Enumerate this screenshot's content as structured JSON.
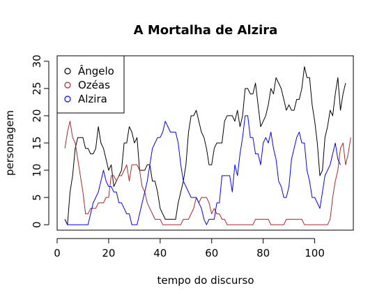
{
  "chart_data": {
    "type": "line",
    "title": "A Mortalha de Alzira",
    "xlabel": "tempo do discurso",
    "ylabel": "personagem",
    "xlim": [
      0,
      115
    ],
    "ylim": [
      -1,
      31
    ],
    "xticks": [
      0,
      20,
      40,
      60,
      80,
      100
    ],
    "yticks": [
      0,
      5,
      10,
      15,
      20,
      25,
      30
    ],
    "legend_position": "top-left",
    "x_start": 3,
    "series": [
      {
        "name": "Ângelo",
        "color": "#000000",
        "values": [
          1,
          0,
          6,
          9,
          14,
          16,
          16,
          16,
          14,
          14,
          13,
          13,
          14,
          18,
          15,
          14,
          12,
          10,
          11,
          7,
          8,
          9,
          10,
          15,
          15,
          18,
          17,
          15,
          16,
          10,
          10,
          10,
          11,
          11,
          8,
          8,
          6,
          3,
          2,
          1,
          1,
          1,
          1,
          1,
          4,
          6,
          8,
          11,
          17,
          20,
          20,
          21,
          19,
          17,
          16,
          14,
          11,
          11,
          14,
          15,
          15,
          15,
          19,
          20,
          20,
          20,
          19,
          21,
          18,
          20,
          25,
          25,
          24,
          24,
          26,
          22,
          18,
          19,
          20,
          22,
          25,
          24,
          27,
          26,
          25,
          23,
          21,
          22,
          21,
          21,
          23,
          23,
          25,
          29,
          27,
          27,
          22,
          19,
          15,
          9,
          10,
          16,
          18,
          21,
          20,
          24,
          27,
          21,
          24,
          26
        ]
      },
      {
        "name": "Ozéas",
        "color": "#a52a2a",
        "values": [
          14,
          17,
          19,
          16,
          15,
          12,
          9,
          6,
          2,
          2,
          3,
          3,
          3,
          4,
          4,
          4,
          5,
          5,
          9,
          9,
          8,
          9,
          9,
          10,
          11,
          8,
          11,
          11,
          11,
          10,
          7,
          6,
          4,
          3,
          2,
          1,
          1,
          1,
          0,
          0,
          0,
          0,
          0,
          0,
          0,
          0,
          1,
          1,
          1,
          2,
          3,
          5,
          4,
          5,
          5,
          5,
          4,
          2,
          3,
          2,
          2,
          1,
          1,
          0,
          0,
          0,
          0,
          0,
          0,
          0,
          0,
          0,
          0,
          0,
          1,
          1,
          1,
          1,
          1,
          1,
          0,
          0,
          0,
          0,
          0,
          0,
          1,
          1,
          1,
          1,
          1,
          1,
          1,
          0,
          0,
          0,
          0,
          0,
          0,
          0,
          0,
          0,
          0,
          1,
          5,
          8,
          10,
          14,
          15,
          11,
          13,
          16
        ]
      },
      {
        "name": "Alzira",
        "color": "#0000ff",
        "values": [
          1,
          0,
          0,
          0,
          0,
          0,
          0,
          0,
          0,
          0,
          2,
          4,
          5,
          6,
          8,
          10,
          8,
          7,
          7,
          6,
          6,
          4,
          4,
          3,
          2,
          2,
          0,
          0,
          0,
          2,
          4,
          6,
          8,
          11,
          14,
          15,
          16,
          16,
          17,
          19,
          18,
          17,
          17,
          17,
          15,
          11,
          8,
          7,
          6,
          5,
          5,
          5,
          4,
          3,
          1,
          0,
          1,
          1,
          1,
          4,
          4,
          9,
          9,
          9,
          9,
          6,
          11,
          9,
          13,
          16,
          20,
          20,
          16,
          16,
          13,
          13,
          11,
          15,
          16,
          15,
          17,
          14,
          12,
          8,
          7,
          5,
          5,
          7,
          12,
          14,
          16,
          17,
          15,
          15,
          10,
          8,
          5,
          5,
          4,
          3,
          6,
          9,
          10,
          11,
          13,
          15,
          12,
          11
        ]
      }
    ]
  }
}
